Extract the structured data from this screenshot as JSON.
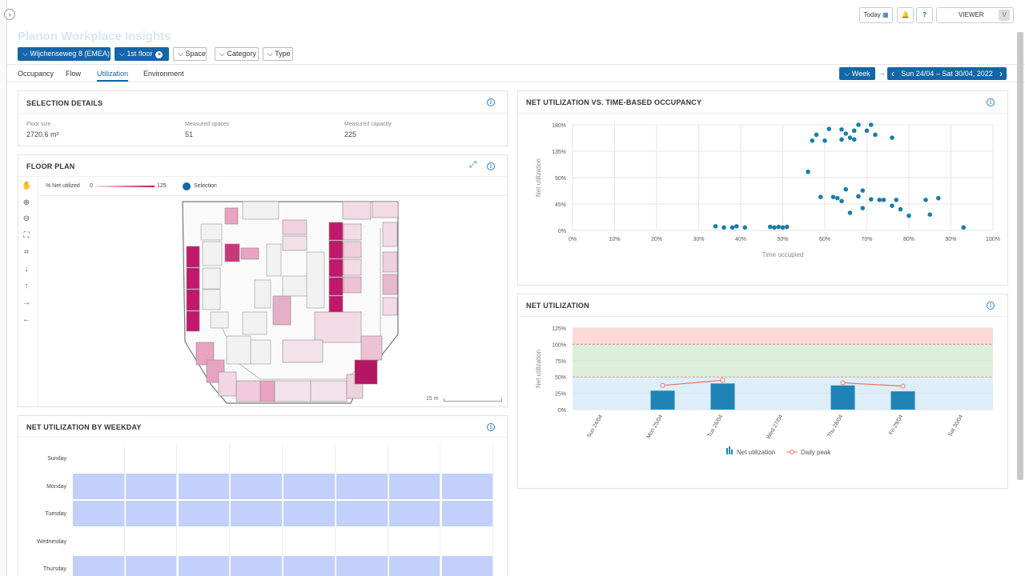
{
  "app": {
    "title": "Planon Workplace Insights",
    "toggle_icon": "chevron-right-icon"
  },
  "top": {
    "today": "Today",
    "calendar_icon": "calendar-icon",
    "bell_icon": "bell-icon",
    "help": "?",
    "role": "VIEWER",
    "avatar": "V"
  },
  "filters": {
    "location": "Wijchenseweg 8 (EMEA)",
    "floor": "1st floor",
    "floor_clear": "×",
    "space": "Space",
    "category": "Category",
    "type": "Type"
  },
  "tabs": [
    "Occupancy",
    "Flow",
    "Utilization",
    "Environment"
  ],
  "period": {
    "mode": "Week",
    "arrow": "→",
    "prev": "‹",
    "range": "Sun 24/04 – Sat 30/04, 2022",
    "next": "›"
  },
  "selection": {
    "title": "SELECTION DETAILS",
    "info": "i",
    "items": [
      {
        "label": "Floor size",
        "value": "2720.6 m²"
      },
      {
        "label": "Measured spaces",
        "value": "51"
      },
      {
        "label": "Measured capacity",
        "value": "225"
      }
    ]
  },
  "floorplan": {
    "title": "FLOOR PLAN",
    "info": "i",
    "legend_label": "% Net utilized",
    "legend_min": "0",
    "legend_max": "125",
    "selection_label": "Selection",
    "scale": "15 m",
    "tools": [
      "hand-icon",
      "zoom-in-icon",
      "zoom-out-icon",
      "fit-icon",
      "fit-selection-icon",
      "arrow-down-icon",
      "arrow-up-icon",
      "arrow-right-icon",
      "arrow-left-icon"
    ],
    "expand_icon": "expand-icon"
  },
  "weekday": {
    "title": "NET UTILIZATION BY WEEKDAY",
    "info": "i",
    "days": [
      "Sunday",
      "Monday",
      "Tuesday",
      "Wednesday",
      "Thursday"
    ],
    "filled": [
      false,
      true,
      true,
      false,
      true
    ]
  },
  "colors": {
    "accent": "#1565a8",
    "bar": "#1f84b5",
    "dot": "#1a7ea8",
    "heat": "#c3d0fb",
    "peak": "#e8705f",
    "band_red": "#fbd9d5",
    "band_green": "#dcefd8",
    "band_blue": "#ddeefa"
  },
  "chart_data": [
    {
      "type": "scatter",
      "title": "NET UTILIZATION VS. TIME-BASED OCCUPANCY",
      "xlabel": "Time occupied",
      "ylabel": "Net utilization",
      "xlim": [
        0,
        100
      ],
      "ylim": [
        0,
        180
      ],
      "xticks": [
        "0%",
        "10%",
        "20%",
        "30%",
        "40%",
        "50%",
        "60%",
        "70%",
        "80%",
        "90%",
        "100%"
      ],
      "yticks": [
        "0%",
        "45%",
        "90%",
        "135%",
        "180%"
      ],
      "points": [
        [
          34,
          7
        ],
        [
          36,
          5
        ],
        [
          38,
          5
        ],
        [
          39,
          7
        ],
        [
          41,
          5
        ],
        [
          47,
          6
        ],
        [
          48,
          5
        ],
        [
          49,
          6
        ],
        [
          50,
          5
        ],
        [
          51,
          6
        ],
        [
          56,
          100
        ],
        [
          57,
          153
        ],
        [
          58,
          163
        ],
        [
          59,
          57
        ],
        [
          60,
          153
        ],
        [
          61,
          173
        ],
        [
          62,
          57
        ],
        [
          63,
          55
        ],
        [
          64,
          155
        ],
        [
          64,
          172
        ],
        [
          64,
          50
        ],
        [
          65,
          70
        ],
        [
          65,
          165
        ],
        [
          66,
          30
        ],
        [
          66,
          158
        ],
        [
          67,
          170
        ],
        [
          67,
          155
        ],
        [
          68,
          180
        ],
        [
          68,
          58
        ],
        [
          69,
          38
        ],
        [
          69,
          68
        ],
        [
          70,
          170
        ],
        [
          71,
          180
        ],
        [
          71,
          53
        ],
        [
          72,
          163
        ],
        [
          73,
          52
        ],
        [
          74,
          52
        ],
        [
          76,
          158
        ],
        [
          76,
          42
        ],
        [
          77,
          52
        ],
        [
          78,
          36
        ],
        [
          80,
          25
        ],
        [
          84,
          52
        ],
        [
          85,
          27
        ],
        [
          87,
          55
        ],
        [
          93,
          5
        ]
      ]
    },
    {
      "type": "bar",
      "title": "NET UTILIZATION",
      "ylabel": "Net utilization",
      "ylim": [
        0,
        125
      ],
      "yticks": [
        "0%",
        "25%",
        "50%",
        "75%",
        "100%",
        "125%"
      ],
      "categories": [
        "Sun 24/04",
        "Mon 25/04",
        "Tue 26/04",
        "Wed 27/04",
        "Thu 28/04",
        "Fri 29/04",
        "Sat 30/04"
      ],
      "series": [
        {
          "name": "Net utilization",
          "values": [
            0,
            29,
            40,
            0,
            37,
            28,
            0
          ]
        },
        {
          "name": "Daily peak",
          "values": [
            null,
            37,
            45,
            null,
            41,
            36,
            null
          ]
        }
      ],
      "bands": [
        {
          "from": 0,
          "to": 50,
          "color": "blue"
        },
        {
          "from": 50,
          "to": 100,
          "color": "green"
        },
        {
          "from": 100,
          "to": 125,
          "color": "red"
        }
      ]
    }
  ]
}
